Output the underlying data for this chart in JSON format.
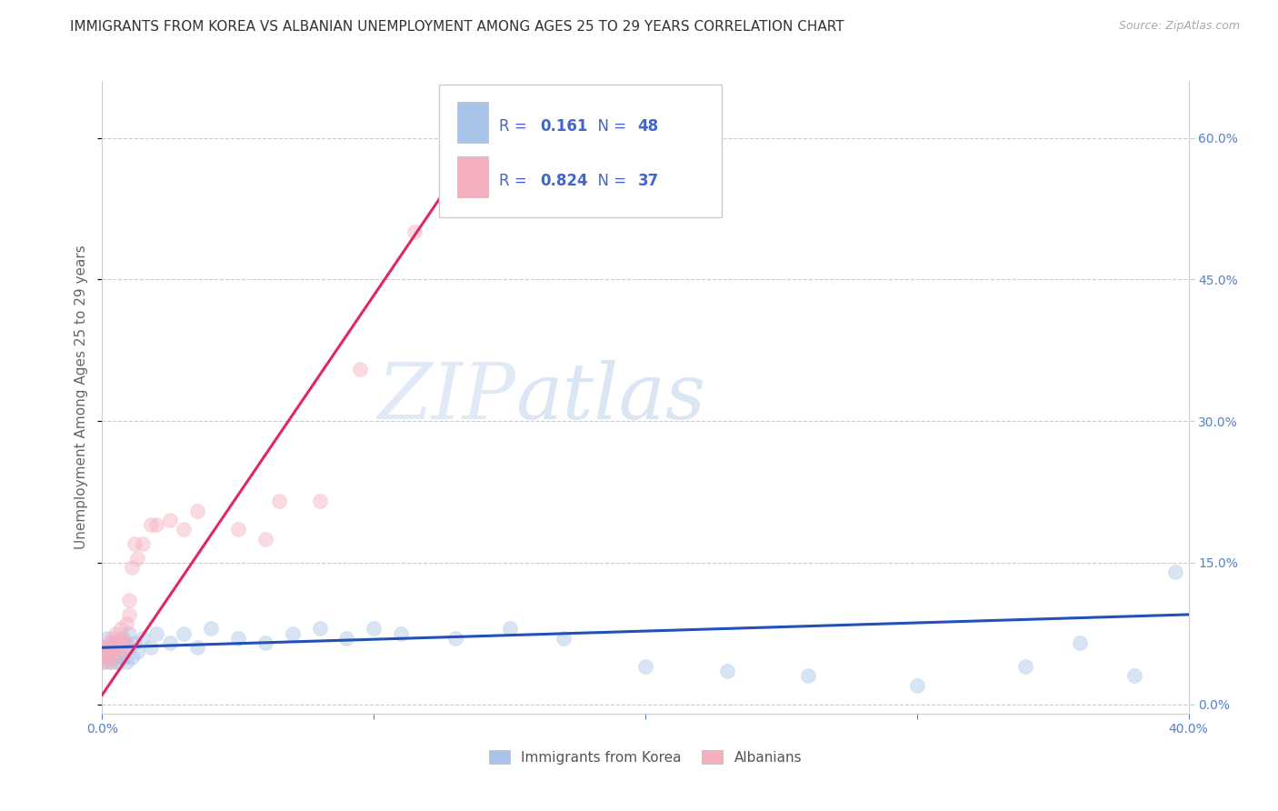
{
  "title": "IMMIGRANTS FROM KOREA VS ALBANIAN UNEMPLOYMENT AMONG AGES 25 TO 29 YEARS CORRELATION CHART",
  "source": "Source: ZipAtlas.com",
  "ylabel": "Unemployment Among Ages 25 to 29 years",
  "xmin": 0.0,
  "xmax": 0.4,
  "ymin": -0.01,
  "ymax": 0.66,
  "x_ticks": [
    0.0,
    0.1,
    0.2,
    0.3,
    0.4
  ],
  "x_tick_labels_show": [
    "0.0%",
    "",
    "",
    "",
    "40.0%"
  ],
  "y_ticks": [
    0.0,
    0.15,
    0.3,
    0.45,
    0.6
  ],
  "y_tick_labels": [
    "0.0%",
    "15.0%",
    "30.0%",
    "45.0%",
    "60.0%"
  ],
  "korea_scatter_color": "#a8c4e8",
  "albanian_scatter_color": "#f5b0c0",
  "korea_line_color": "#2050b8",
  "albanian_line_color": "#e02860",
  "scatter_size": 130,
  "scatter_alpha": 0.45,
  "watermark_zip": "ZIP",
  "watermark_atlas": "atlas",
  "background_color": "#ffffff",
  "grid_color": "#cccccc",
  "title_color": "#333333",
  "title_fontsize": 11,
  "source_fontsize": 9,
  "axis_label_fontsize": 11,
  "tick_fontsize": 10,
  "tick_color": "#5580cc",
  "legend_color": "#4466cc",
  "legend_r1": "0.161",
  "legend_n1": "48",
  "legend_r2": "0.824",
  "legend_n2": "37",
  "korea_x": [
    0.0,
    0.001,
    0.001,
    0.002,
    0.002,
    0.003,
    0.003,
    0.004,
    0.004,
    0.005,
    0.005,
    0.006,
    0.006,
    0.007,
    0.007,
    0.008,
    0.008,
    0.009,
    0.01,
    0.01,
    0.011,
    0.012,
    0.013,
    0.015,
    0.018,
    0.02,
    0.025,
    0.03,
    0.035,
    0.04,
    0.05,
    0.06,
    0.07,
    0.08,
    0.09,
    0.1,
    0.11,
    0.13,
    0.15,
    0.17,
    0.2,
    0.23,
    0.26,
    0.3,
    0.34,
    0.36,
    0.38,
    0.395
  ],
  "korea_y": [
    0.05,
    0.045,
    0.06,
    0.05,
    0.07,
    0.045,
    0.06,
    0.05,
    0.065,
    0.045,
    0.06,
    0.045,
    0.06,
    0.05,
    0.07,
    0.05,
    0.065,
    0.045,
    0.06,
    0.075,
    0.05,
    0.065,
    0.055,
    0.07,
    0.06,
    0.075,
    0.065,
    0.075,
    0.06,
    0.08,
    0.07,
    0.065,
    0.075,
    0.08,
    0.07,
    0.08,
    0.075,
    0.07,
    0.08,
    0.07,
    0.04,
    0.035,
    0.03,
    0.02,
    0.04,
    0.065,
    0.03,
    0.14
  ],
  "albanian_x": [
    0.0,
    0.001,
    0.001,
    0.002,
    0.002,
    0.003,
    0.003,
    0.003,
    0.004,
    0.004,
    0.005,
    0.005,
    0.006,
    0.006,
    0.007,
    0.007,
    0.008,
    0.008,
    0.009,
    0.009,
    0.01,
    0.01,
    0.011,
    0.012,
    0.013,
    0.015,
    0.018,
    0.02,
    0.025,
    0.03,
    0.035,
    0.05,
    0.06,
    0.065,
    0.08,
    0.095,
    0.115
  ],
  "albanian_y": [
    0.045,
    0.05,
    0.06,
    0.055,
    0.065,
    0.05,
    0.045,
    0.06,
    0.07,
    0.05,
    0.065,
    0.075,
    0.055,
    0.065,
    0.06,
    0.08,
    0.07,
    0.06,
    0.065,
    0.085,
    0.095,
    0.11,
    0.145,
    0.17,
    0.155,
    0.17,
    0.19,
    0.19,
    0.195,
    0.185,
    0.205,
    0.185,
    0.175,
    0.215,
    0.215,
    0.355,
    0.5
  ],
  "korea_trend_x": [
    0.0,
    0.4
  ],
  "korea_trend_y": [
    0.06,
    0.095
  ],
  "albanian_trend_x": [
    0.0,
    0.13
  ],
  "albanian_trend_y": [
    0.01,
    0.56
  ]
}
